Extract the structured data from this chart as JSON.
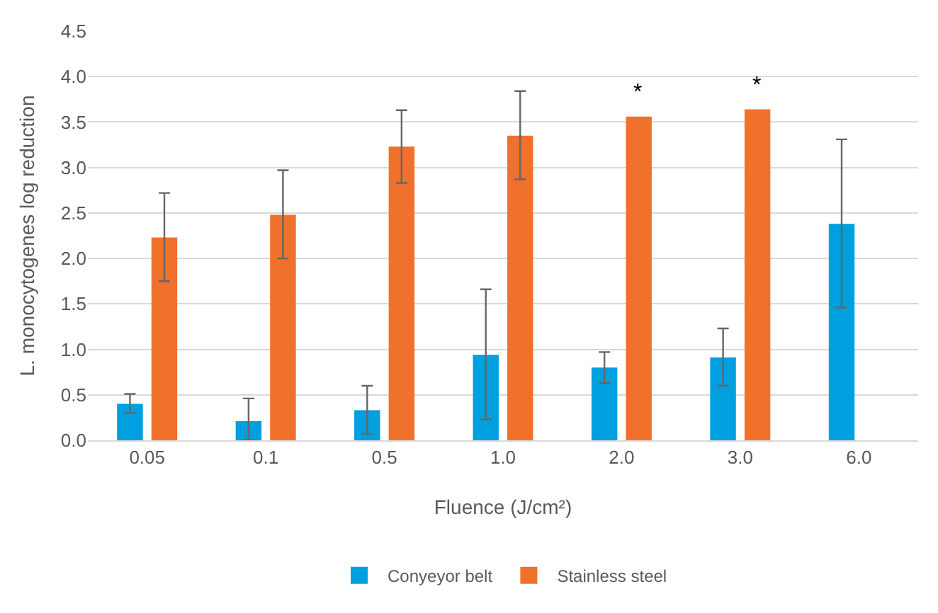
{
  "chart_data": {
    "type": "bar",
    "xlabel": "Fluence (J/cm²)",
    "ylabel": "L. monocytogenes log reduction",
    "categories": [
      "0.05",
      "0.1",
      "0.5",
      "1.0",
      "2.0",
      "3.0",
      "6.0"
    ],
    "series": [
      {
        "name": "Conyeyor belt",
        "color": "#009fdf",
        "values": [
          0.4,
          0.21,
          0.33,
          0.94,
          0.8,
          0.91,
          2.38
        ],
        "errors": [
          [
            0.3,
            0.51
          ],
          [
            0.0,
            0.46
          ],
          [
            0.07,
            0.6
          ],
          [
            0.23,
            1.66
          ],
          [
            0.63,
            0.97
          ],
          [
            0.6,
            1.23
          ],
          [
            1.46,
            3.31
          ]
        ]
      },
      {
        "name": "Stainless steel",
        "color": "#ef712c",
        "values": [
          2.23,
          2.48,
          3.23,
          3.35,
          3.56,
          3.64,
          null
        ],
        "errors": [
          [
            1.75,
            2.72
          ],
          [
            2.0,
            2.97
          ],
          [
            2.83,
            3.63
          ],
          [
            2.87,
            3.84
          ],
          null,
          null,
          null
        ]
      }
    ],
    "annotations": [
      {
        "text": "*",
        "x": "2.0",
        "y": 3.56
      },
      {
        "text": "*",
        "x": "3.0",
        "y": 3.64
      }
    ],
    "ylim": [
      0,
      4.5
    ],
    "yticks": [
      {
        "value": 0,
        "label": "0.0"
      },
      {
        "value": 0.5,
        "label": "0.5"
      },
      {
        "value": 1,
        "label": "1.0"
      },
      {
        "value": 1.5,
        "label": "1.5"
      },
      {
        "value": 2,
        "label": "2.0"
      },
      {
        "value": 2.5,
        "label": "2.5"
      },
      {
        "value": 3,
        "label": "3.0"
      },
      {
        "value": 3.5,
        "label": "3.5"
      },
      {
        "value": 4,
        "label": "4.0"
      },
      {
        "value": 4.5,
        "label": "4.5"
      }
    ],
    "grid": "y",
    "legend": "bottom"
  }
}
